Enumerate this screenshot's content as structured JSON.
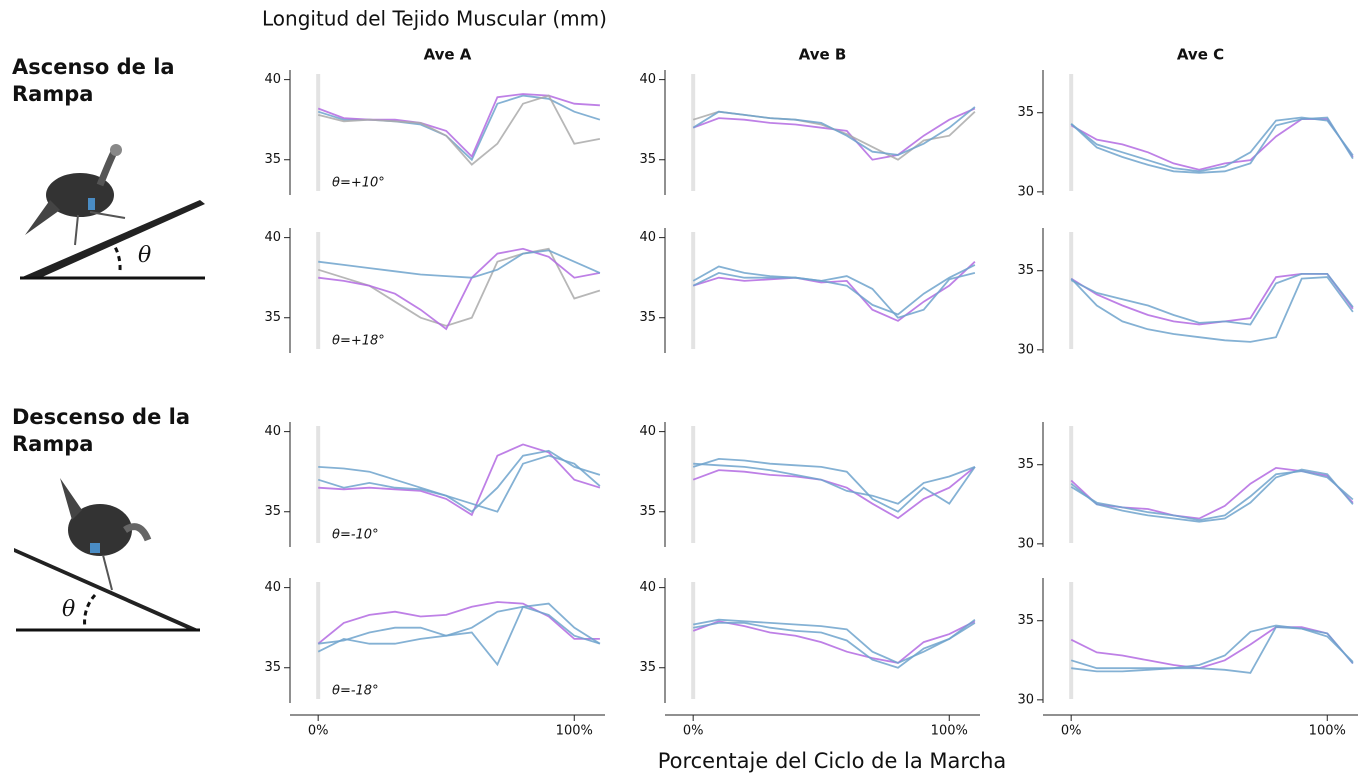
{
  "title": "Longitud del Tejido Muscular (mm)",
  "xlabel": "Porcentaje del Ciclo de la Marcha",
  "sections": [
    {
      "label": "Ascenso de la Rampa",
      "angle_symbol": "θ"
    },
    {
      "label": "Descenso de la Rampa",
      "angle_symbol": "θ"
    }
  ],
  "columns": [
    "Ave A",
    "Ave B",
    "Ave C"
  ],
  "chart_data": [
    {
      "type": "line",
      "annotation": "θ=+10°",
      "x": [
        0,
        10,
        20,
        30,
        40,
        50,
        60,
        70,
        80,
        90,
        100,
        110
      ],
      "xlim": [
        -11,
        112
      ],
      "ylim": [
        32.8,
        40.6
      ],
      "yticks": [
        35,
        40
      ],
      "series": [
        {
          "color": "#6fa3cc",
          "values": [
            38,
            37.5,
            37.5,
            37.4,
            37.2,
            36.5,
            35,
            38.5,
            39,
            38.8,
            38,
            37.5
          ]
        },
        {
          "color": "#b36ae2",
          "values": [
            38.2,
            37.6,
            37.5,
            37.5,
            37.3,
            36.8,
            35.2,
            38.9,
            39.1,
            39,
            38.5,
            38.4
          ]
        },
        {
          "color": "#aaaaaa",
          "values": [
            37.8,
            37.4,
            37.5,
            37.4,
            37.3,
            36.5,
            34.7,
            36,
            38.5,
            39,
            36,
            36.3
          ]
        }
      ]
    },
    {
      "type": "line",
      "x": [
        0,
        10,
        20,
        30,
        40,
        50,
        60,
        70,
        80,
        90,
        100,
        110
      ],
      "xlim": [
        -11,
        112
      ],
      "ylim": [
        32.8,
        40.6
      ],
      "yticks": [
        35,
        40
      ],
      "series": [
        {
          "color": "#b36ae2",
          "values": [
            37,
            37.6,
            37.5,
            37.3,
            37.2,
            37,
            36.8,
            35,
            35.3,
            36.5,
            37.5,
            38.2
          ]
        },
        {
          "color": "#aaaaaa",
          "values": [
            37.5,
            38,
            37.8,
            37.6,
            37.5,
            37.2,
            36.6,
            35.8,
            35,
            36.2,
            36.5,
            38
          ]
        },
        {
          "color": "#6fa3cc",
          "values": [
            37,
            38,
            37.8,
            37.6,
            37.5,
            37.3,
            36.5,
            35.5,
            35.3,
            36,
            37,
            38.3
          ]
        }
      ]
    },
    {
      "type": "line",
      "x": [
        0,
        10,
        20,
        30,
        40,
        50,
        60,
        70,
        80,
        90,
        100,
        110
      ],
      "xlim": [
        -11,
        112
      ],
      "ylim": [
        29.8,
        37.7
      ],
      "yticks": [
        30,
        35
      ],
      "series": [
        {
          "color": "#b36ae2",
          "values": [
            34.2,
            33.3,
            33,
            32.5,
            31.8,
            31.4,
            31.8,
            32,
            33.5,
            34.6,
            34.6,
            32.2
          ]
        },
        {
          "color": "#6fa3cc",
          "values": [
            34.3,
            33,
            32.5,
            32,
            31.5,
            31.3,
            31.6,
            32.5,
            34.5,
            34.7,
            34.5,
            32.3
          ]
        },
        {
          "color": "#6fa3cc",
          "values": [
            34.3,
            32.8,
            32.2,
            31.7,
            31.3,
            31.2,
            31.3,
            31.8,
            34.2,
            34.6,
            34.7,
            32.1
          ]
        }
      ]
    },
    {
      "type": "line",
      "annotation": "θ=+18°",
      "x": [
        0,
        10,
        20,
        30,
        40,
        50,
        60,
        70,
        80,
        90,
        100,
        110
      ],
      "xlim": [
        -11,
        112
      ],
      "ylim": [
        32.8,
        40.6
      ],
      "yticks": [
        35,
        40
      ],
      "series": [
        {
          "color": "#aaaaaa",
          "values": [
            38,
            37.5,
            37,
            36,
            35,
            34.5,
            35,
            38.5,
            39,
            39.3,
            36.2,
            36.7
          ]
        },
        {
          "color": "#b36ae2",
          "values": [
            37.5,
            37.3,
            37,
            36.5,
            35.5,
            34.3,
            37.5,
            39,
            39.3,
            38.8,
            37.5,
            37.8
          ]
        },
        {
          "color": "#6fa3cc",
          "values": [
            38.5,
            38.3,
            38.1,
            37.9,
            37.7,
            37.6,
            37.5,
            38,
            39,
            39.2,
            38.5,
            37.8
          ]
        }
      ]
    },
    {
      "type": "line",
      "x": [
        0,
        10,
        20,
        30,
        40,
        50,
        60,
        70,
        80,
        90,
        100,
        110
      ],
      "xlim": [
        -11,
        112
      ],
      "ylim": [
        32.8,
        40.6
      ],
      "yticks": [
        35,
        40
      ],
      "series": [
        {
          "color": "#b36ae2",
          "values": [
            37,
            37.5,
            37.3,
            37.4,
            37.5,
            37.2,
            37.3,
            35.5,
            34.8,
            36,
            37,
            38.5
          ]
        },
        {
          "color": "#6fa3cc",
          "values": [
            37,
            37.8,
            37.5,
            37.5,
            37.5,
            37.3,
            37,
            35.8,
            35.2,
            36.5,
            37.5,
            38.3
          ]
        },
        {
          "color": "#6fa3cc",
          "values": [
            37.3,
            38.2,
            37.8,
            37.6,
            37.5,
            37.3,
            37.6,
            36.8,
            35,
            35.5,
            37.4,
            37.8
          ]
        }
      ]
    },
    {
      "type": "line",
      "x": [
        0,
        10,
        20,
        30,
        40,
        50,
        60,
        70,
        80,
        90,
        100,
        110
      ],
      "xlim": [
        -11,
        112
      ],
      "ylim": [
        29.8,
        37.7
      ],
      "yticks": [
        30,
        35
      ],
      "series": [
        {
          "color": "#b36ae2",
          "values": [
            34.5,
            33.5,
            32.8,
            32.2,
            31.8,
            31.6,
            31.8,
            32,
            34.6,
            34.8,
            34.8,
            32.6
          ]
        },
        {
          "color": "#6fa3cc",
          "values": [
            34.5,
            32.8,
            31.8,
            31.3,
            31,
            30.8,
            30.6,
            30.5,
            30.8,
            34.5,
            34.6,
            32.4
          ]
        },
        {
          "color": "#6fa3cc",
          "values": [
            34.4,
            33.6,
            33.2,
            32.8,
            32.2,
            31.7,
            31.8,
            31.6,
            34.2,
            34.8,
            34.8,
            32.7
          ]
        }
      ]
    },
    {
      "type": "line",
      "annotation": "θ=-10°",
      "x": [
        0,
        10,
        20,
        30,
        40,
        50,
        60,
        70,
        80,
        90,
        100,
        110
      ],
      "xlim": [
        -11,
        112
      ],
      "ylim": [
        32.8,
        40.6
      ],
      "yticks": [
        35,
        40
      ],
      "series": [
        {
          "color": "#b36ae2",
          "values": [
            36.5,
            36.4,
            36.5,
            36.4,
            36.3,
            35.8,
            34.8,
            38.5,
            39.2,
            38.7,
            37,
            36.5
          ]
        },
        {
          "color": "#6fa3cc",
          "values": [
            37.8,
            37.7,
            37.5,
            37,
            36.5,
            36,
            35,
            36.5,
            38.5,
            38.8,
            37.8,
            37.3
          ]
        },
        {
          "color": "#6fa3cc",
          "values": [
            37,
            36.5,
            36.8,
            36.5,
            36.4,
            36,
            35.5,
            35,
            38,
            38.5,
            38,
            36.6
          ]
        }
      ]
    },
    {
      "type": "line",
      "x": [
        0,
        10,
        20,
        30,
        40,
        50,
        60,
        70,
        80,
        90,
        100,
        110
      ],
      "xlim": [
        -11,
        112
      ],
      "ylim": [
        32.8,
        40.6
      ],
      "yticks": [
        35,
        40
      ],
      "series": [
        {
          "color": "#b36ae2",
          "values": [
            37,
            37.6,
            37.5,
            37.3,
            37.2,
            37,
            36.5,
            35.5,
            34.6,
            35.8,
            36.5,
            37.8
          ]
        },
        {
          "color": "#6fa3cc",
          "values": [
            37.8,
            38.3,
            38.2,
            38,
            37.9,
            37.8,
            37.5,
            35.8,
            35,
            36.5,
            35.5,
            37.8
          ]
        },
        {
          "color": "#6fa3cc",
          "values": [
            38,
            37.9,
            37.8,
            37.6,
            37.3,
            37,
            36.3,
            36,
            35.5,
            36.8,
            37.2,
            37.8
          ]
        }
      ]
    },
    {
      "type": "line",
      "x": [
        0,
        10,
        20,
        30,
        40,
        50,
        60,
        70,
        80,
        90,
        100,
        110
      ],
      "xlim": [
        -11,
        112
      ],
      "ylim": [
        29.8,
        37.7
      ],
      "yticks": [
        30,
        35
      ],
      "series": [
        {
          "color": "#b36ae2",
          "values": [
            34,
            32.5,
            32.3,
            32.2,
            31.8,
            31.6,
            32.4,
            33.8,
            34.8,
            34.6,
            34.3,
            32.6
          ]
        },
        {
          "color": "#6fa3cc",
          "values": [
            33.6,
            32.6,
            32.3,
            32,
            31.8,
            31.5,
            31.8,
            33,
            34.4,
            34.6,
            34.2,
            32.8
          ]
        },
        {
          "color": "#6fa3cc",
          "values": [
            33.8,
            32.5,
            32.1,
            31.8,
            31.6,
            31.4,
            31.6,
            32.6,
            34.2,
            34.7,
            34.4,
            32.5
          ]
        }
      ]
    },
    {
      "type": "line",
      "annotation": "θ=-18°",
      "x": [
        0,
        10,
        20,
        30,
        40,
        50,
        60,
        70,
        80,
        90,
        100,
        110
      ],
      "xlim": [
        -11,
        112
      ],
      "ylim": [
        32.8,
        40.6
      ],
      "yticks": [
        35,
        40
      ],
      "xticks": [
        {
          "value": 0,
          "label": "0%"
        },
        {
          "value": 100,
          "label": "100%"
        }
      ],
      "series": [
        {
          "color": "#b36ae2",
          "values": [
            36.5,
            37.8,
            38.3,
            38.5,
            38.2,
            38.3,
            38.8,
            39.1,
            39,
            38.2,
            36.8,
            36.8
          ]
        },
        {
          "color": "#6fa3cc",
          "values": [
            36.5,
            36.7,
            37.2,
            37.5,
            37.5,
            37,
            37.2,
            35.2,
            38.8,
            39,
            37.5,
            36.5
          ]
        },
        {
          "color": "#6fa3cc",
          "values": [
            36,
            36.8,
            36.5,
            36.5,
            36.8,
            37,
            37.5,
            38.5,
            38.8,
            38.3,
            37,
            36.5
          ]
        }
      ]
    },
    {
      "type": "line",
      "x": [
        0,
        10,
        20,
        30,
        40,
        50,
        60,
        70,
        80,
        90,
        100,
        110
      ],
      "xlim": [
        -11,
        112
      ],
      "ylim": [
        32.8,
        40.6
      ],
      "yticks": [
        35,
        40
      ],
      "xticks": [
        {
          "value": 0,
          "label": "0%"
        },
        {
          "value": 100,
          "label": "100%"
        }
      ],
      "series": [
        {
          "color": "#b36ae2",
          "values": [
            37.3,
            37.9,
            37.6,
            37.2,
            37,
            36.6,
            36,
            35.6,
            35.3,
            36.6,
            37.1,
            37.9
          ]
        },
        {
          "color": "#6fa3cc",
          "values": [
            37.5,
            37.8,
            37.8,
            37.5,
            37.3,
            37.2,
            36.7,
            35.5,
            35,
            36.2,
            36.8,
            38
          ]
        },
        {
          "color": "#6fa3cc",
          "values": [
            37.7,
            38,
            37.9,
            37.8,
            37.7,
            37.6,
            37.4,
            36,
            35.3,
            36,
            36.8,
            37.8
          ]
        }
      ]
    },
    {
      "type": "line",
      "x": [
        0,
        10,
        20,
        30,
        40,
        50,
        60,
        70,
        80,
        90,
        100,
        110
      ],
      "xlim": [
        -11,
        112
      ],
      "ylim": [
        29.8,
        37.7
      ],
      "yticks": [
        30,
        35
      ],
      "xticks": [
        {
          "value": 0,
          "label": "0%"
        },
        {
          "value": 100,
          "label": "100%"
        }
      ],
      "series": [
        {
          "color": "#b36ae2",
          "values": [
            33.8,
            33,
            32.8,
            32.5,
            32.2,
            32,
            32.5,
            33.5,
            34.6,
            34.6,
            34.2,
            32.3
          ]
        },
        {
          "color": "#6fa3cc",
          "values": [
            32.5,
            32,
            32,
            32,
            32,
            32.2,
            32.8,
            34.3,
            34.7,
            34.5,
            34,
            32.4
          ]
        },
        {
          "color": "#6fa3cc",
          "values": [
            32,
            31.8,
            31.8,
            31.9,
            32,
            32,
            31.9,
            31.7,
            34.6,
            34.5,
            34.2,
            32.3
          ]
        }
      ]
    }
  ]
}
